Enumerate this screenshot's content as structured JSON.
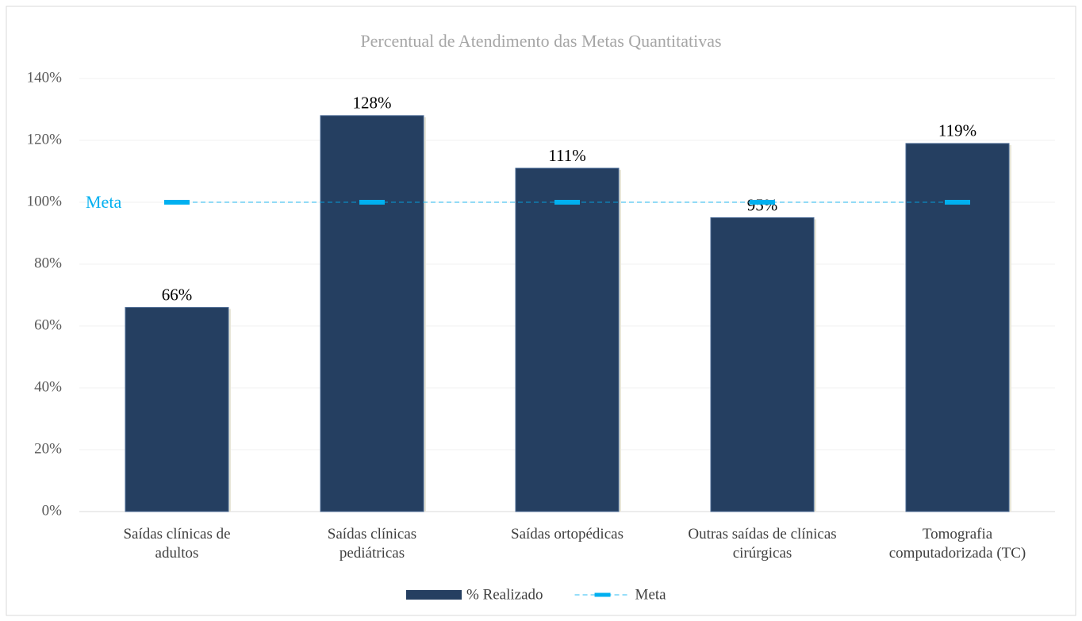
{
  "chart_data": {
    "type": "bar",
    "title": "Percentual de Atendimento das Metas Quantitativas",
    "categories": [
      "Saídas clínicas de\nadultos",
      "Saídas clínicas\npediátricas",
      "Saídas ortopédicas",
      "Outras saídas de clínicas\ncirúrgicas",
      "Tomografia\ncomputadorizada (TC)"
    ],
    "series": [
      {
        "name": "% Realizado",
        "type": "bar",
        "color": "#253f61",
        "values": [
          66,
          128,
          111,
          95,
          119
        ],
        "value_labels": [
          "66%",
          "128%",
          "111%",
          "95%",
          "119%"
        ]
      },
      {
        "name": "Meta",
        "type": "line",
        "color": "#00b0f0",
        "dashed": true,
        "values": [
          100,
          100,
          100,
          100,
          100
        ]
      }
    ],
    "annotation": "Meta",
    "ylim": [
      0,
      140
    ],
    "yticks": [
      {
        "value": 0,
        "label": "0%"
      },
      {
        "value": 20,
        "label": "20%"
      },
      {
        "value": 40,
        "label": "40%"
      },
      {
        "value": 60,
        "label": "60%"
      },
      {
        "value": 80,
        "label": "80%"
      },
      {
        "value": 100,
        "label": "100%"
      },
      {
        "value": 120,
        "label": "120%"
      },
      {
        "value": 140,
        "label": "140%"
      }
    ],
    "grid": true,
    "legend": "bottom"
  }
}
